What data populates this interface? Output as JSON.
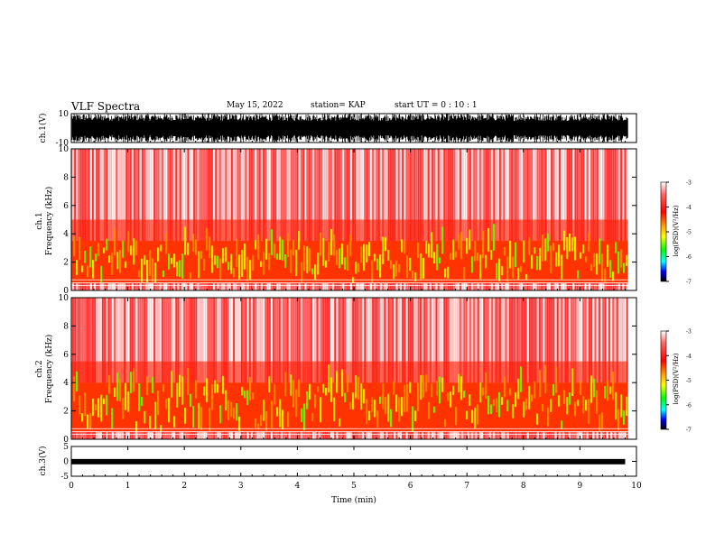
{
  "header": {
    "title": "VLF Spectra",
    "date": "May 15, 2022",
    "station": "station= KAP",
    "start_ut": "start  UT  =   0  : 10 : 1"
  },
  "chart_data": [
    {
      "type": "line",
      "panel": "waveform-ch1",
      "ylabel": "ch.1(V)",
      "ylim": [
        -10,
        10
      ],
      "yticks": [
        "10",
        "-10"
      ],
      "xlim": [
        0,
        10
      ],
      "description_values": {
        "amplitude_range_v": [
          -10,
          10
        ],
        "saturating": true
      }
    },
    {
      "type": "heatmap",
      "panel": "spectrogram-ch1",
      "ylabel": "ch.1\nFrequency  (kHz)",
      "ylim": [
        0,
        10
      ],
      "yticks": [
        "0",
        "2",
        "4",
        "6",
        "8",
        "10"
      ],
      "xlim": [
        0,
        10
      ],
      "colorbar": {
        "label": "log(PSD)(V²/Hz)",
        "range": [
          -7,
          -3
        ],
        "ticks": [
          "-3",
          "-4",
          "-5",
          "-6",
          "-7"
        ]
      },
      "bands_khz": {
        "strong": [
          0.5,
          3.5
        ],
        "moderate": [
          3.5,
          5
        ],
        "weak": [
          5,
          10
        ]
      }
    },
    {
      "type": "heatmap",
      "panel": "spectrogram-ch2",
      "ylabel": "ch.2\nFrequency  (kHz)",
      "ylim": [
        0,
        10
      ],
      "yticks": [
        "0",
        "2",
        "4",
        "6",
        "8",
        "10"
      ],
      "xlim": [
        0,
        10
      ],
      "colorbar": {
        "label": "log(PSD)(V²/Hz)",
        "range": [
          -7,
          -3
        ],
        "ticks": [
          "-3",
          "-4",
          "-5",
          "-6",
          "-7"
        ]
      },
      "bands_khz": {
        "strong": [
          0.5,
          4
        ],
        "moderate": [
          4,
          5.5
        ],
        "weak": [
          5.5,
          10
        ]
      }
    },
    {
      "type": "line",
      "panel": "waveform-ch3",
      "ylabel": "ch.3(V)",
      "ylim": [
        -5,
        5
      ],
      "yticks": [
        "5",
        "0",
        "-5"
      ],
      "xlim": [
        0,
        10
      ],
      "xlabel": "Time  (min)",
      "xticks": [
        "0",
        "1",
        "2",
        "3",
        "4",
        "5",
        "6",
        "7",
        "8",
        "9",
        "10"
      ],
      "description_values": {
        "amplitude_range_v": [
          -1,
          0.8
        ],
        "data_end_min": 9.8
      }
    }
  ],
  "labels": {
    "ch1_v": "ch.1(V)",
    "ch1_freq_a": "ch.1",
    "ch1_freq_b": "Frequency  (kHz)",
    "ch2_freq_a": "ch.2",
    "ch2_freq_b": "Frequency  (kHz)",
    "ch3_v": "ch.3(V)",
    "xlabel": "Time  (min)",
    "cbar_label": "log(PSD)(V²/Hz)"
  },
  "colors": {
    "spectrum_high": "#ff0000",
    "spectrum_mid": "#ffff00",
    "spectrum_low": "#00ff00",
    "background": "#ffffff"
  }
}
